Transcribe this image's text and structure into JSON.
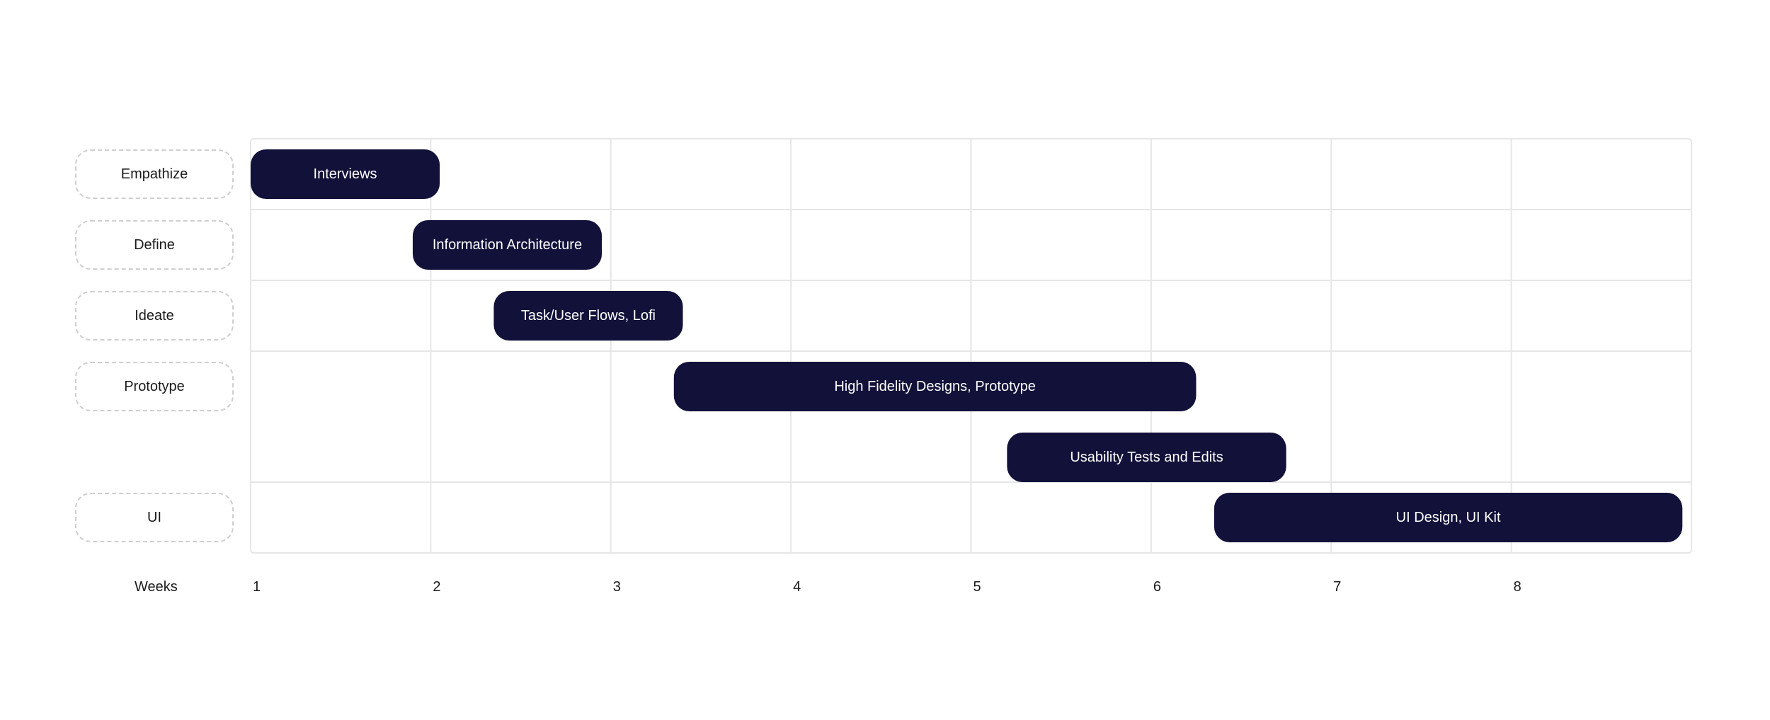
{
  "chart_data": {
    "type": "gantt",
    "x_axis_title": "Weeks",
    "x_ticks": [
      "1",
      "2",
      "3",
      "4",
      "5",
      "6",
      "7",
      "8"
    ],
    "xlim": [
      1,
      9
    ],
    "phases": [
      "Empathize",
      "Define",
      "Ideate",
      "Prototype",
      "UI"
    ],
    "tasks": [
      {
        "label": "Interviews",
        "phase": "Empathize",
        "lane": 0,
        "start": 1.0,
        "end": 2.05
      },
      {
        "label": "Information Architecture",
        "phase": "Define",
        "lane": 0,
        "start": 1.9,
        "end": 2.95
      },
      {
        "label": "Task/User Flows, Lofi",
        "phase": "Ideate",
        "lane": 0,
        "start": 2.35,
        "end": 3.4
      },
      {
        "label": "High Fidelity Designs, Prototype",
        "phase": "Prototype",
        "lane": 0,
        "start": 3.35,
        "end": 6.25
      },
      {
        "label": "Usability Tests and Edits",
        "phase": "Prototype",
        "lane": 1,
        "start": 5.2,
        "end": 6.75
      },
      {
        "label": "UI Design, UI Kit",
        "phase": "UI",
        "lane": 0,
        "start": 6.35,
        "end": 8.95
      }
    ],
    "colors": {
      "bar": "#11113a",
      "bar_text": "#ffffff",
      "grid": "#e6e6e6",
      "phase_border": "#cfcfcf"
    },
    "grid": true
  }
}
